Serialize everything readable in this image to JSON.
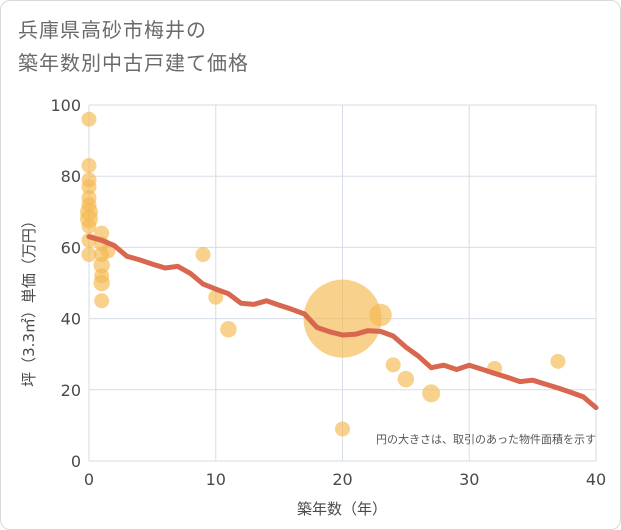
{
  "chart_data": {
    "type": "scatter",
    "title_lines": [
      "兵庫県高砂市梅井の",
      "築年数別中古戸建て価格"
    ],
    "xlabel": "築年数（年）",
    "ylabel": "坪（3.3㎡）単価（万円）",
    "xlim": [
      0,
      40
    ],
    "ylim": [
      0,
      100
    ],
    "xticks": [
      0,
      10,
      20,
      30,
      40
    ],
    "yticks": [
      0,
      20,
      40,
      60,
      80,
      100
    ],
    "grid": true,
    "note": "円の大きさは、取引のあった物件面積を示す",
    "colors": {
      "bubble": "#f5b94e",
      "line": "#d9664f",
      "grid": "#d6dde6"
    },
    "points": [
      {
        "x": 0,
        "y": 96,
        "size": 1
      },
      {
        "x": 0,
        "y": 83,
        "size": 1
      },
      {
        "x": 0,
        "y": 79,
        "size": 1
      },
      {
        "x": 0,
        "y": 77,
        "size": 1
      },
      {
        "x": 0,
        "y": 74,
        "size": 1
      },
      {
        "x": 0,
        "y": 72,
        "size": 1
      },
      {
        "x": 0,
        "y": 70,
        "size": 1.2
      },
      {
        "x": 0,
        "y": 68,
        "size": 1.2
      },
      {
        "x": 0,
        "y": 66,
        "size": 1
      },
      {
        "x": 0,
        "y": 62,
        "size": 1
      },
      {
        "x": 0,
        "y": 58,
        "size": 1
      },
      {
        "x": 1,
        "y": 64,
        "size": 1
      },
      {
        "x": 1,
        "y": 61,
        "size": 1
      },
      {
        "x": 1,
        "y": 58,
        "size": 1
      },
      {
        "x": 1,
        "y": 55,
        "size": 1.1
      },
      {
        "x": 1,
        "y": 52,
        "size": 1
      },
      {
        "x": 1,
        "y": 50,
        "size": 1.1
      },
      {
        "x": 1,
        "y": 45,
        "size": 1
      },
      {
        "x": 1.5,
        "y": 59,
        "size": 1
      },
      {
        "x": 9,
        "y": 58,
        "size": 1
      },
      {
        "x": 10,
        "y": 46,
        "size": 1
      },
      {
        "x": 11,
        "y": 37,
        "size": 1.1
      },
      {
        "x": 20,
        "y": 40,
        "size": 5.2
      },
      {
        "x": 20,
        "y": 9,
        "size": 1
      },
      {
        "x": 23,
        "y": 41,
        "size": 1.5
      },
      {
        "x": 24,
        "y": 27,
        "size": 1
      },
      {
        "x": 25,
        "y": 23,
        "size": 1.1
      },
      {
        "x": 27,
        "y": 19,
        "size": 1.2
      },
      {
        "x": 32,
        "y": 26,
        "size": 1
      },
      {
        "x": 37,
        "y": 28,
        "size": 1
      }
    ],
    "trend": {
      "x": [
        0,
        1,
        2,
        3,
        4,
        5,
        6,
        7,
        8,
        9,
        10,
        11,
        12,
        13,
        14,
        15,
        16,
        17,
        18,
        19,
        20,
        21,
        22,
        23,
        24,
        25,
        26,
        27,
        28,
        29,
        30,
        31,
        32,
        33,
        34,
        35,
        36,
        37,
        38,
        39,
        40
      ],
      "y": [
        63,
        62,
        60.5,
        57.5,
        56.5,
        55.3,
        54.2,
        54.7,
        52.7,
        49.7,
        48.3,
        47,
        44.3,
        44,
        45,
        43.8,
        42.6,
        41.3,
        37.5,
        36.3,
        35.4,
        35.6,
        36.6,
        36.4,
        35.1,
        32,
        29.4,
        26.2,
        26.9,
        25.7,
        26.9,
        25.8,
        24.6,
        23.5,
        22.3,
        22.7,
        21.6,
        20.5,
        19.3,
        18,
        15
      ]
    }
  }
}
